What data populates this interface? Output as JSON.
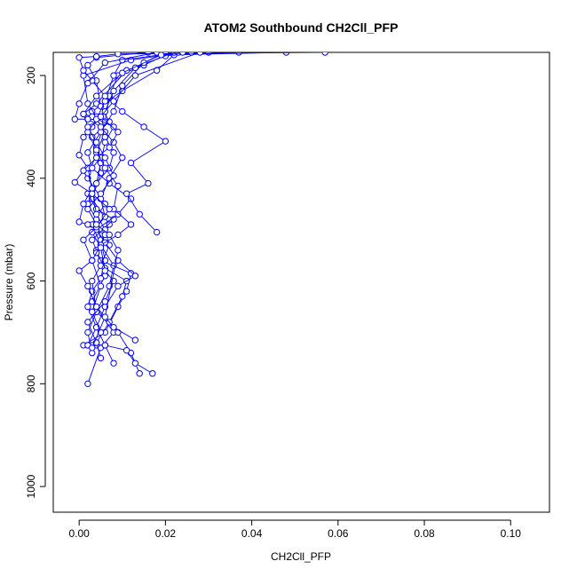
{
  "chart_data": {
    "type": "scatter",
    "title": "ATOM2 Southbound CH2Cll_PFP",
    "xlabel": "CH2Cll_PFP",
    "ylabel": "Pressure (mbar)",
    "xlim": [
      -0.006,
      0.109
    ],
    "ylim": [
      1050,
      155
    ],
    "y_reversed": true,
    "x_ticks": [
      0.0,
      0.02,
      0.04,
      0.06,
      0.08,
      0.1
    ],
    "x_tick_labels": [
      "0.00",
      "0.02",
      "0.04",
      "0.06",
      "0.08",
      "0.10"
    ],
    "y_ticks": [
      200,
      400,
      600,
      800,
      1000
    ],
    "y_tick_labels": [
      "200",
      "400",
      "600",
      "800",
      "1000"
    ],
    "grid": false,
    "marker": "open-circle",
    "connected": true,
    "series": [
      {
        "values": [
          [
            0.002,
            800
          ],
          [
            0.005,
            730
          ],
          [
            0.008,
            700
          ],
          [
            0.003,
            640
          ],
          [
            0.006,
            590
          ],
          [
            0.004,
            540
          ],
          [
            0.007,
            490
          ],
          [
            0.003,
            440
          ],
          [
            0.005,
            390
          ],
          [
            0.004,
            340
          ],
          [
            0.006,
            290
          ],
          [
            0.007,
            240
          ],
          [
            0.009,
            200
          ],
          [
            0.015,
            180
          ],
          [
            0.02,
            160
          ],
          [
            0.03,
            155
          ]
        ]
      },
      {
        "values": [
          [
            0.014,
            780
          ],
          [
            0.012,
            740
          ],
          [
            0.009,
            700
          ],
          [
            0.004,
            660
          ],
          [
            0.007,
            610
          ],
          [
            0.008,
            570
          ],
          [
            0.005,
            530
          ],
          [
            0.003,
            490
          ],
          [
            0.006,
            450
          ],
          [
            0.002,
            400
          ],
          [
            0.004,
            350
          ],
          [
            0.006,
            310
          ],
          [
            0.003,
            270
          ],
          [
            0.01,
            230
          ],
          [
            0.018,
            190
          ],
          [
            0.022,
            160
          ],
          [
            0.037,
            155
          ]
        ]
      },
      {
        "values": [
          [
            0.017,
            780
          ],
          [
            0.013,
            760
          ],
          [
            0.011,
            735
          ],
          [
            0.006,
            725
          ],
          [
            0.004,
            725
          ],
          [
            0.003,
            725
          ],
          [
            0.002,
            725
          ],
          [
            0.001,
            725
          ],
          [
            0.006,
            700
          ],
          [
            0.009,
            650
          ],
          [
            0.011,
            620
          ],
          [
            0.012,
            585
          ],
          [
            0.005,
            560
          ],
          [
            0.003,
            520
          ],
          [
            0.008,
            480
          ],
          [
            0.004,
            460
          ],
          [
            0.002,
            430
          ],
          [
            0.007,
            380
          ],
          [
            0.008,
            350
          ],
          [
            0.006,
            320
          ],
          [
            0.004,
            280
          ],
          [
            0.002,
            255
          ],
          [
            0.001,
            200
          ],
          [
            0.012,
            170
          ],
          [
            0.02,
            160
          ],
          [
            0.048,
            155
          ]
        ]
      },
      {
        "values": [
          [
            0.008,
            760
          ],
          [
            0.006,
            725
          ],
          [
            0.004,
            690
          ],
          [
            0.002,
            650
          ],
          [
            0.003,
            620
          ],
          [
            0.005,
            595
          ],
          [
            0.006,
            560
          ],
          [
            0.005,
            520
          ],
          [
            0.004,
            480
          ],
          [
            0.002,
            450
          ],
          [
            0.004,
            410
          ],
          [
            0.005,
            370
          ],
          [
            0.006,
            330
          ],
          [
            0.008,
            300
          ],
          [
            0.003,
            280
          ],
          [
            0.001,
            275
          ],
          [
            0.004,
            255
          ],
          [
            0.011,
            190
          ],
          [
            0.02,
            162
          ],
          [
            0.026,
            155
          ]
        ]
      },
      {
        "values": [
          [
            0.003,
            740
          ],
          [
            0.002,
            700
          ],
          [
            0.004,
            660
          ],
          [
            0.003,
            600
          ],
          [
            0.005,
            570
          ],
          [
            0.007,
            530
          ],
          [
            0.006,
            500
          ],
          [
            0.004,
            470
          ],
          [
            0.003,
            420
          ],
          [
            0.002,
            390
          ],
          [
            0.005,
            360
          ],
          [
            0.003,
            320
          ],
          [
            0.007,
            290
          ],
          [
            0.005,
            260
          ],
          [
            0.004,
            210
          ],
          [
            0.002,
            180
          ],
          [
            0.004,
            165
          ],
          [
            0.016,
            155
          ]
        ]
      },
      {
        "values": [
          [
            0.005,
            750
          ],
          [
            0.004,
            720
          ],
          [
            0.007,
            680
          ],
          [
            0.01,
            630
          ],
          [
            0.011,
            600
          ],
          [
            0.006,
            575
          ],
          [
            0.004,
            545
          ],
          [
            0.006,
            510
          ],
          [
            0.002,
            490
          ],
          [
            0.0,
            485
          ],
          [
            0.001,
            450
          ],
          [
            0.003,
            420
          ],
          [
            0.002,
            380
          ],
          [
            0.0,
            355
          ],
          [
            0.001,
            320
          ],
          [
            0.003,
            300
          ],
          [
            0.006,
            270
          ],
          [
            0.008,
            230
          ],
          [
            0.013,
            185
          ],
          [
            0.022,
            155
          ]
        ]
      },
      {
        "values": [
          [
            0.002,
            725
          ],
          [
            0.004,
            690
          ],
          [
            0.006,
            650
          ],
          [
            0.009,
            610
          ],
          [
            0.013,
            590
          ],
          [
            0.009,
            560
          ],
          [
            0.006,
            525
          ],
          [
            0.004,
            500
          ],
          [
            0.009,
            470
          ],
          [
            0.012,
            440
          ],
          [
            0.007,
            410
          ],
          [
            0.003,
            380
          ],
          [
            0.002,
            350
          ],
          [
            0.005,
            310
          ],
          [
            0.008,
            270
          ],
          [
            0.01,
            220
          ],
          [
            0.015,
            175
          ],
          [
            0.02,
            155
          ]
        ]
      },
      {
        "values": [
          [
            0.013,
            715
          ],
          [
            0.008,
            690
          ],
          [
            0.004,
            650
          ],
          [
            0.002,
            610
          ],
          [
            0.0,
            580
          ],
          [
            0.003,
            560
          ],
          [
            0.005,
            530
          ],
          [
            0.009,
            510
          ],
          [
            0.012,
            490
          ],
          [
            0.008,
            460
          ],
          [
            0.009,
            415
          ],
          [
            0.006,
            380
          ],
          [
            0.004,
            345
          ],
          [
            0.002,
            310
          ],
          [
            0.004,
            285
          ],
          [
            0.006,
            250
          ],
          [
            0.008,
            200
          ],
          [
            0.01,
            170
          ],
          [
            0.023,
            155
          ]
        ]
      },
      {
        "values": [
          [
            0.018,
            505
          ],
          [
            0.014,
            470
          ],
          [
            0.011,
            430
          ],
          [
            0.016,
            410
          ],
          [
            0.012,
            370
          ],
          [
            0.02,
            328
          ],
          [
            0.015,
            300
          ],
          [
            0.01,
            270
          ],
          [
            0.006,
            240
          ],
          [
            0.003,
            210
          ],
          [
            0.001,
            190
          ],
          [
            0.0,
            165
          ],
          [
            0.004,
            163
          ],
          [
            0.009,
            158
          ],
          [
            0.057,
            155
          ]
        ]
      },
      {
        "values": [
          [
            0.004,
            720
          ],
          [
            0.002,
            680
          ],
          [
            0.006,
            640
          ],
          [
            0.008,
            600
          ],
          [
            0.006,
            580
          ],
          [
            0.005,
            535
          ],
          [
            0.003,
            505
          ],
          [
            0.006,
            475
          ],
          [
            0.005,
            440
          ],
          [
            0.007,
            400
          ],
          [
            0.01,
            360
          ],
          [
            0.008,
            330
          ],
          [
            0.005,
            300
          ],
          [
            0.002,
            285
          ],
          [
            -0.001,
            285
          ],
          [
            0.0,
            255
          ],
          [
            0.002,
            215
          ],
          [
            0.006,
            175
          ],
          [
            0.018,
            155
          ]
        ]
      },
      {
        "values": [
          [
            0.005,
            700
          ],
          [
            0.003,
            660
          ],
          [
            0.005,
            610
          ],
          [
            0.003,
            560
          ],
          [
            0.001,
            520
          ],
          [
            0.004,
            495
          ],
          [
            0.007,
            460
          ],
          [
            0.003,
            430
          ],
          [
            -0.001,
            408
          ],
          [
            0.001,
            385
          ],
          [
            0.004,
            360
          ],
          [
            0.007,
            340
          ],
          [
            0.009,
            310
          ],
          [
            0.005,
            280
          ],
          [
            0.008,
            250
          ],
          [
            0.013,
            200
          ],
          [
            0.028,
            155
          ]
        ]
      },
      {
        "values": [
          [
            0.003,
            730
          ],
          [
            0.006,
            670
          ],
          [
            0.009,
            540
          ],
          [
            0.007,
            510
          ],
          [
            0.004,
            490
          ],
          [
            0.002,
            460
          ],
          [
            0.005,
            430
          ],
          [
            0.008,
            395
          ],
          [
            0.006,
            360
          ],
          [
            0.004,
            330
          ],
          [
            0.002,
            300
          ],
          [
            0.001,
            275
          ],
          [
            0.004,
            240
          ],
          [
            0.01,
            195
          ],
          [
            0.019,
            160
          ],
          [
            0.024,
            155
          ]
        ]
      }
    ]
  }
}
